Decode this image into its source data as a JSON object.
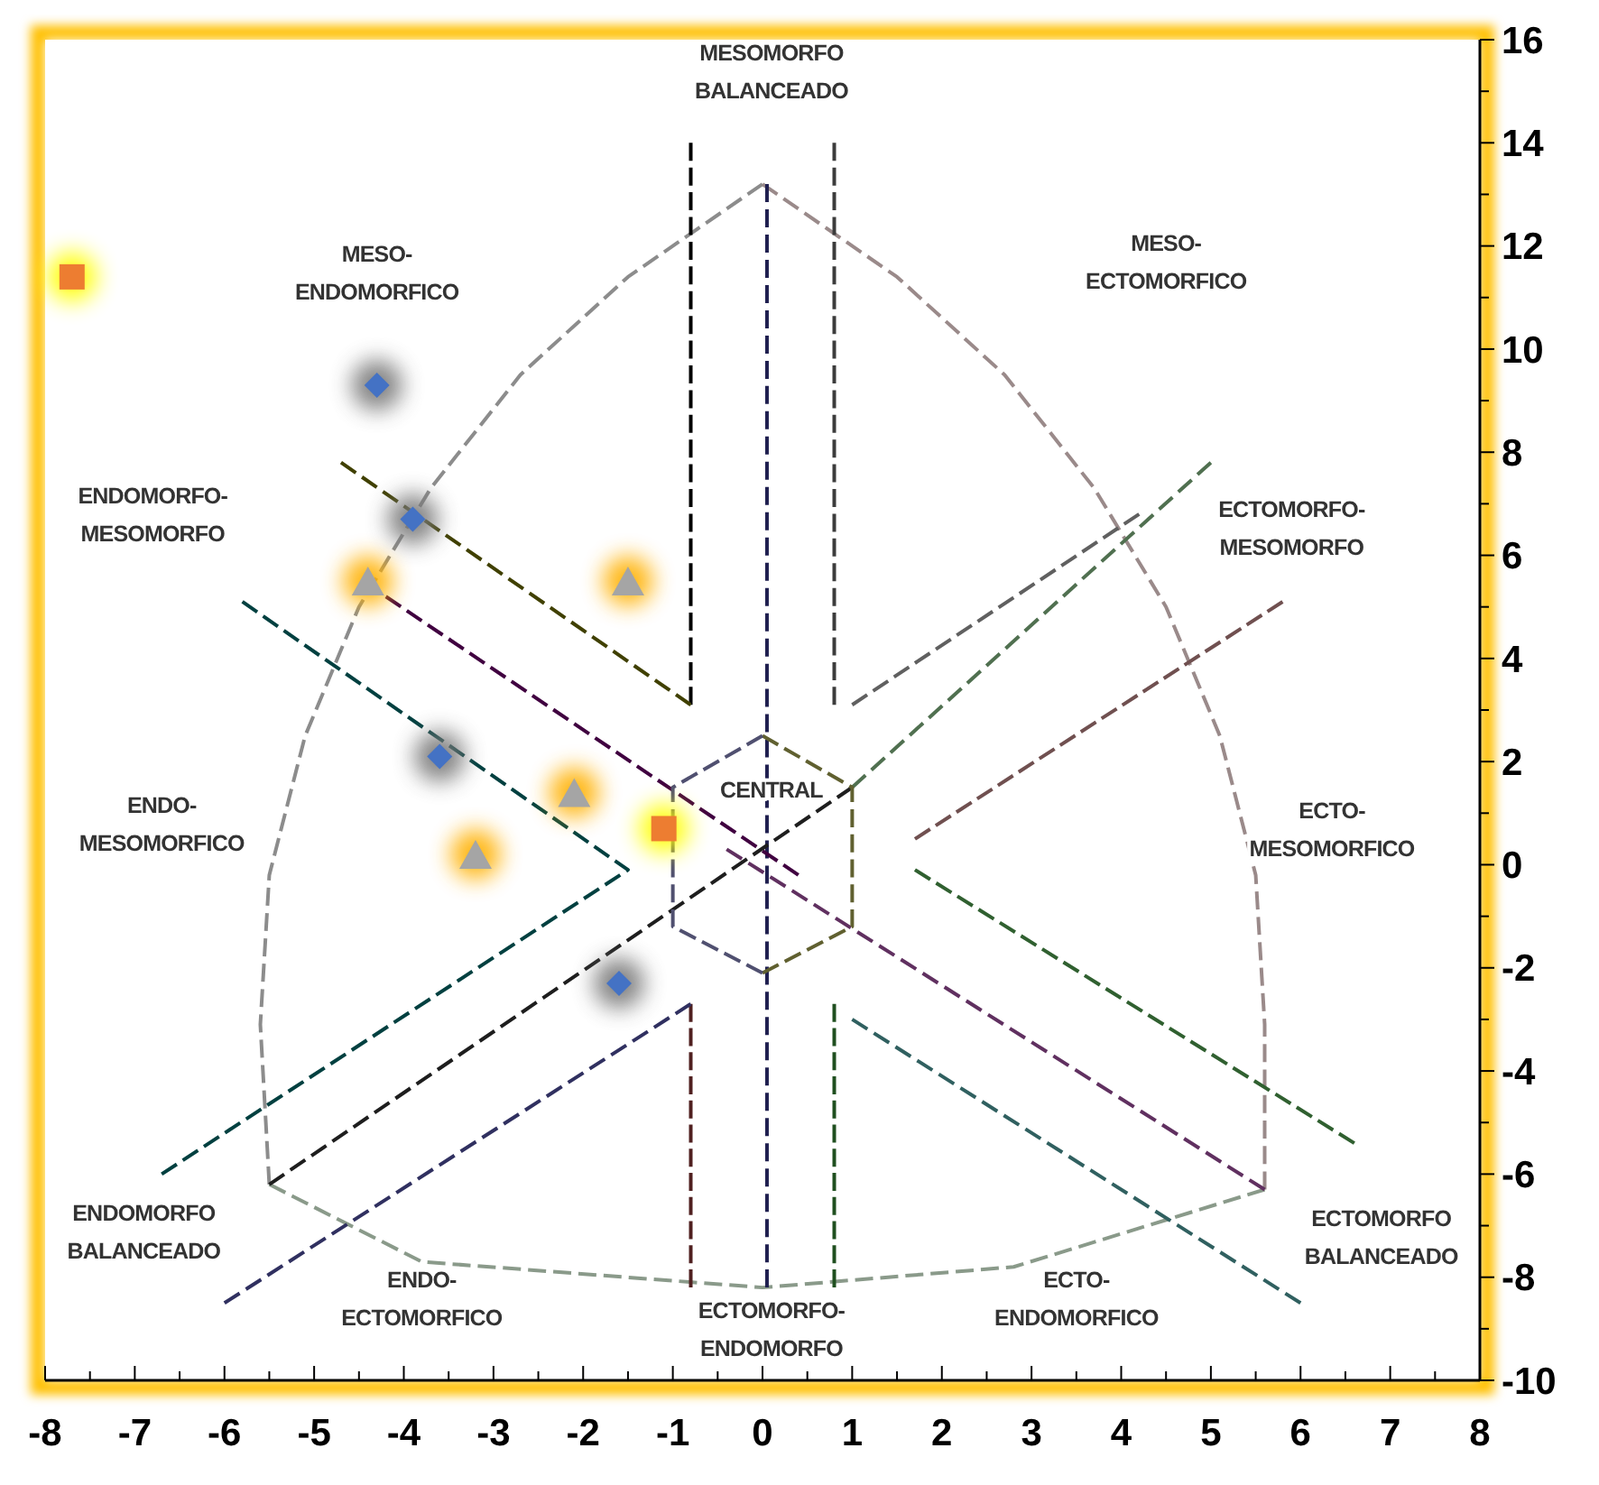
{
  "chart_data": {
    "type": "scatter",
    "xlim": [
      -8,
      8
    ],
    "ylim": [
      -10,
      16
    ],
    "xticks": [
      -8,
      {
        "value": -7.5,
        "label": null
      },
      -7,
      {
        "value": -6.5,
        "label": null
      },
      -6,
      {
        "value": -5.5,
        "label": null
      },
      -5,
      {
        "value": -4.5,
        "label": null
      },
      -4,
      {
        "value": -3.5,
        "label": null
      },
      -3,
      {
        "value": -2.5,
        "label": null
      },
      -2,
      {
        "value": -1.5,
        "label": null
      },
      -1,
      {
        "value": -0.5,
        "label": null
      },
      0,
      {
        "value": 0.5,
        "label": null
      },
      1,
      {
        "value": 1.5,
        "label": null
      },
      2,
      {
        "value": 2.5,
        "label": null
      },
      3,
      {
        "value": 3.5,
        "label": null
      },
      4,
      {
        "value": 4.5,
        "label": null
      },
      5,
      {
        "value": 5.5,
        "label": null
      },
      6,
      {
        "value": 6.5,
        "label": null
      },
      7,
      {
        "value": 7.5,
        "label": null
      },
      8
    ],
    "yticks": [
      -10,
      {
        "value": -9,
        "label": null
      },
      -8,
      {
        "value": -7,
        "label": null
      },
      -6,
      {
        "value": -5,
        "label": null
      },
      -4,
      {
        "value": -3,
        "label": null
      },
      -2,
      {
        "value": -1,
        "label": null
      },
      0,
      {
        "value": 1,
        "label": null
      },
      2,
      {
        "value": 3,
        "label": null
      },
      4,
      {
        "value": 5,
        "label": null
      },
      6,
      {
        "value": 7,
        "label": null
      },
      8,
      {
        "value": 9,
        "label": null
      },
      10,
      {
        "value": 11,
        "label": null
      },
      12,
      {
        "value": 13,
        "label": null
      },
      14,
      {
        "value": 15,
        "label": null
      },
      16
    ],
    "grid": false,
    "legend": false,
    "series": [
      {
        "type": "line",
        "color": "#8c8c8c",
        "line_style": "dashed",
        "marker": "none",
        "x": [
          -5.5,
          -5.6,
          -5.5,
          -5.1,
          -4.5,
          -3.7,
          -2.7,
          -1.5,
          0
        ],
        "values": [
          -6.2,
          -3.1,
          -0.2,
          2.5,
          5.0,
          7.3,
          9.5,
          11.4,
          13.2
        ]
      },
      {
        "type": "line",
        "color": "#9a8a8a",
        "line_style": "dashed",
        "marker": "none",
        "x": [
          0,
          1.5,
          2.7,
          3.7,
          4.5,
          5.1,
          5.5,
          5.6,
          5.6
        ],
        "values": [
          13.2,
          11.4,
          9.5,
          7.3,
          5.0,
          2.5,
          -0.2,
          -3.1,
          -6.3
        ]
      },
      {
        "type": "line",
        "color": "#8a9a8a",
        "line_style": "dashed",
        "marker": "none",
        "x": [
          -5.5,
          -3.8,
          0,
          2.8,
          5.6
        ],
        "values": [
          -6.2,
          -7.7,
          -8.2,
          -7.8,
          -6.3
        ]
      },
      {
        "type": "line",
        "color": "#000000",
        "line_style": "dashed",
        "marker": "none",
        "x": [
          -0.8,
          -0.8
        ],
        "values": [
          14,
          3.1
        ]
      },
      {
        "type": "line",
        "color": "#3c3c3c",
        "line_style": "dashed",
        "marker": "none",
        "x": [
          0.8,
          0.8
        ],
        "values": [
          14,
          3.1
        ]
      },
      {
        "type": "line",
        "color": "#202050",
        "line_style": "dashed",
        "marker": "none",
        "x": [
          0.05,
          0.05
        ],
        "values": [
          13.2,
          -8.2
        ]
      },
      {
        "type": "line",
        "color": "#502020",
        "line_style": "dashed",
        "marker": "none",
        "x": [
          -0.8,
          -0.8
        ],
        "values": [
          -2.7,
          -8.2
        ]
      },
      {
        "type": "line",
        "color": "#205020",
        "line_style": "dashed",
        "marker": "none",
        "x": [
          0.8,
          0.8
        ],
        "values": [
          -2.7,
          -8.2
        ]
      },
      {
        "type": "line",
        "color": "#404000",
        "line_style": "dashed",
        "marker": "none",
        "x": [
          -4.7,
          -0.8
        ],
        "values": [
          7.8,
          3.1
        ]
      },
      {
        "type": "line",
        "color": "#400040",
        "line_style": "dashed",
        "marker": "none",
        "x": [
          -4.2,
          0.4
        ],
        "values": [
          5.2,
          -0.2
        ]
      },
      {
        "type": "line",
        "color": "#004040",
        "line_style": "dashed",
        "marker": "none",
        "x": [
          -5.8,
          -1.5,
          -6.7
        ],
        "values": [
          5.1,
          -0.1,
          -6.0
        ]
      },
      {
        "type": "line",
        "color": "#1e1e1e",
        "line_style": "dashed",
        "marker": "none",
        "x": [
          -5.5,
          1.0
        ],
        "values": [
          -6.2,
          1.5
        ]
      },
      {
        "type": "line",
        "color": "#303060",
        "line_style": "dashed",
        "marker": "none",
        "x": [
          -6.0,
          -0.8
        ],
        "values": [
          -8.5,
          -2.7
        ]
      },
      {
        "type": "line",
        "color": "#606060",
        "line_style": "dashed",
        "marker": "none",
        "x": [
          1.0,
          4.2
        ],
        "values": [
          3.1,
          6.8
        ]
      },
      {
        "type": "line",
        "color": "#705050",
        "line_style": "dashed",
        "marker": "none",
        "x": [
          1.7,
          5.8
        ],
        "values": [
          0.5,
          5.1
        ]
      },
      {
        "type": "line",
        "color": "#507050",
        "line_style": "dashed",
        "marker": "none",
        "x": [
          1.0,
          5.0
        ],
        "values": [
          1.5,
          7.8
        ]
      },
      {
        "type": "line",
        "color": "#306030",
        "line_style": "dashed",
        "marker": "none",
        "x": [
          1.7,
          6.6
        ],
        "values": [
          -0.1,
          -5.4
        ]
      },
      {
        "type": "line",
        "color": "#603060",
        "line_style": "dashed",
        "marker": "none",
        "x": [
          -0.4,
          5.6
        ],
        "values": [
          0.3,
          -6.3
        ]
      },
      {
        "type": "line",
        "color": "#306060",
        "line_style": "dashed",
        "marker": "none",
        "x": [
          1.0,
          6.0
        ],
        "values": [
          -3.0,
          -8.5
        ]
      },
      {
        "type": "line",
        "color": "#606030",
        "line_style": "dashed",
        "marker": "none",
        "x": [
          0,
          1.0,
          1.0,
          0
        ],
        "values": [
          2.5,
          1.5,
          -1.2,
          -2.1
        ]
      },
      {
        "type": "line",
        "color": "#505070",
        "line_style": "dashed",
        "marker": "none",
        "x": [
          0,
          -1.0,
          -1.0,
          0
        ],
        "values": [
          2.5,
          1.5,
          -1.2,
          -2.1
        ]
      },
      {
        "color": "#ed7d31",
        "marker": "square",
        "x": [
          -7.7,
          -1.1
        ],
        "values": [
          11.4,
          0.7
        ]
      },
      {
        "color": "#a5a5a5",
        "marker": "triangle",
        "x": [
          -4.4,
          -1.5,
          -2.1,
          -3.2
        ],
        "values": [
          5.5,
          5.5,
          1.4,
          0.2
        ]
      },
      {
        "color": "#4472c4",
        "marker": "diamond",
        "x": [
          -4.3,
          -3.9,
          -3.6,
          -1.6
        ],
        "values": [
          9.3,
          6.7,
          2.1,
          -2.3
        ]
      }
    ],
    "annotations": [
      "MESOMORFO\nBALANCEADO",
      "MESO-\nENDOMORFICO",
      "MESO-\nECTOMORFICO",
      "ENDOMORFO-\nMESOMORFO",
      "ECTOMORFO-\nMESOMORFO",
      "ENDO-\nMESOMORFICO",
      "ECTO-\nMESOMORFICO",
      "CENTRAL",
      "ENDOMORFO\nBALANCEADO",
      "ECTOMORFO\nBALANCEADO",
      "ENDO-\nECTOMORFICO",
      "ECTOMORFO-\nENDOMORFO",
      "ECTO-\nENDOMORFICO"
    ]
  }
}
